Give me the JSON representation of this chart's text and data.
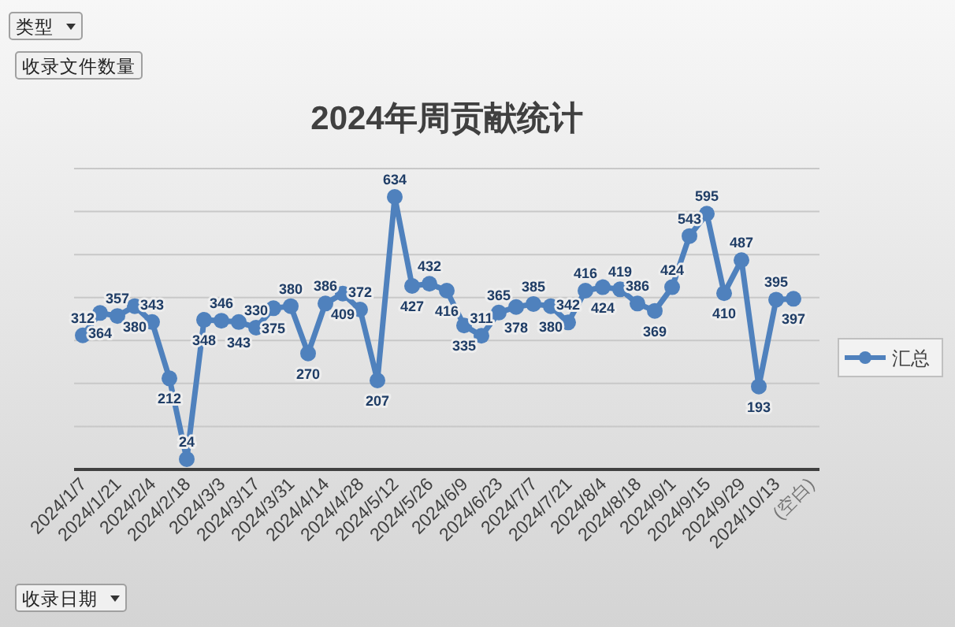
{
  "chart_data": {
    "type": "line",
    "title": "2024年周贡献统计",
    "categories": [
      "2024/1/7",
      null,
      "2024/1/21",
      null,
      "2024/2/4",
      null,
      "2024/2/18",
      null,
      "2024/3/3",
      null,
      "2024/3/17",
      null,
      "2024/3/31",
      null,
      "2024/4/14",
      null,
      "2024/4/28",
      null,
      "2024/5/12",
      null,
      "2024/5/26",
      null,
      "2024/6/9",
      null,
      "2024/6/23",
      null,
      "2024/7/7",
      null,
      "2024/7/21",
      null,
      "2024/8/4",
      null,
      "2024/8/18",
      null,
      "2024/9/1",
      null,
      "2024/9/15",
      null,
      "2024/9/29",
      null,
      "2024/10/13",
      null,
      "(空白)"
    ],
    "series": [
      {
        "name": "汇总",
        "color": "#4f81bd",
        "values": [
          312,
          364,
          357,
          380,
          343,
          212,
          24,
          348,
          346,
          343,
          330,
          375,
          380,
          270,
          386,
          409,
          372,
          207,
          634,
          427,
          432,
          416,
          335,
          311,
          365,
          378,
          385,
          380,
          342,
          416,
          424,
          419,
          386,
          369,
          424,
          543,
          595,
          410,
          487,
          193,
          395,
          397,
          null
        ]
      }
    ],
    "ylim": [
      0,
      700
    ],
    "yticks": [
      {
        "value": 0,
        "label": null
      },
      {
        "value": 100,
        "label": null
      },
      {
        "value": 200,
        "label": null
      },
      {
        "value": 300,
        "label": null
      },
      {
        "value": 400,
        "label": null
      },
      {
        "value": 500,
        "label": null
      },
      {
        "value": 600,
        "label": null
      },
      {
        "value": 700,
        "label": null
      }
    ],
    "tick_labels": "x",
    "grid": "y",
    "legend": "right",
    "marker": "circle",
    "line_style": "solid",
    "data_labels": true,
    "annotations": [
      "类型",
      "收录文件数量",
      "收录日期"
    ]
  }
}
